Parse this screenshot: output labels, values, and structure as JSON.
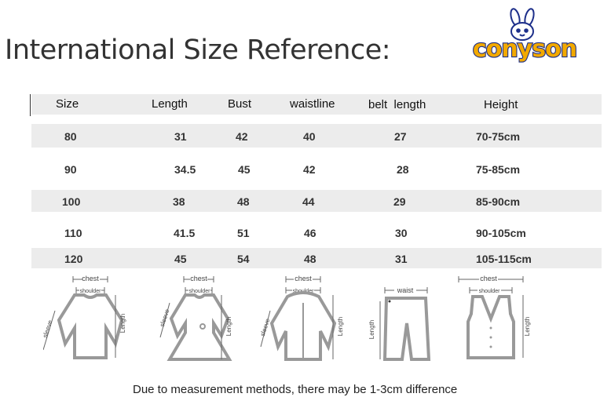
{
  "title": "International Size Reference:",
  "brand": {
    "name": "conyson",
    "color": "#f2a900",
    "outline": "#1d2f8a"
  },
  "table": {
    "headers": [
      "Size",
      "Length",
      "Bust",
      "waistline",
      "belt  length",
      "Height"
    ],
    "rows": [
      [
        "80",
        "31",
        "42",
        "40",
        "27",
        "70-75cm"
      ],
      [
        "90",
        "34.5",
        "45",
        "42",
        "28",
        "75-85cm"
      ],
      [
        "100",
        "38",
        "48",
        "44",
        "29",
        "85-90cm"
      ],
      [
        "110",
        "41.5",
        "51",
        "46",
        "30",
        "90-105cm"
      ],
      [
        "120",
        "45",
        "54",
        "48",
        "31",
        "105-115cm"
      ]
    ]
  },
  "diagrams": {
    "chest": "chest",
    "shoulder": "shoulder",
    "sleeve": "sleeve",
    "length": "Length",
    "waist": "waist"
  },
  "note": "Due to measurement methods, there may be 1-3cm difference"
}
